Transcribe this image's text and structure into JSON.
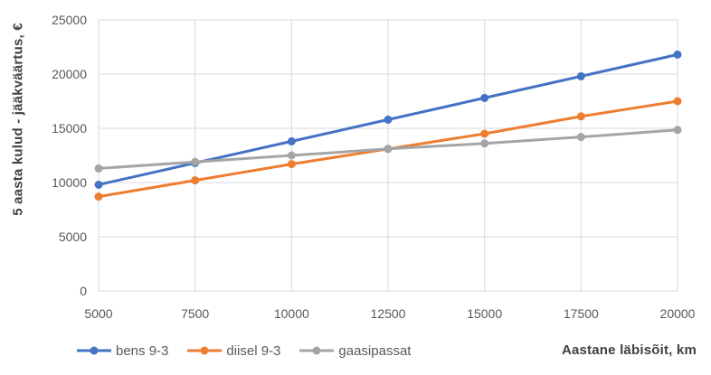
{
  "window": {
    "background": "#FFFFFF"
  },
  "chart_data": {
    "type": "line",
    "title": "",
    "xlabel": "Aastane läbisõit, km",
    "ylabel": "5 aasta kulud - jääkväärtus, €",
    "x": [
      5000,
      7500,
      10000,
      12500,
      15000,
      17500,
      20000
    ],
    "x_tick_labels": [
      "5000",
      "7500",
      "10000",
      "12500",
      "15000",
      "17500",
      "20000"
    ],
    "y_ticks": [
      0,
      5000,
      10000,
      15000,
      20000,
      25000
    ],
    "y_tick_labels": [
      "0",
      "5000",
      "10000",
      "15000",
      "20000",
      "25000"
    ],
    "xlim": [
      5000,
      20000
    ],
    "ylim": [
      0,
      25000
    ],
    "grid": true,
    "legend_position": "bottom-left",
    "series": [
      {
        "name": "bens 9-3",
        "color": "#4472C4",
        "values": [
          9800,
          11800,
          13800,
          15800,
          17800,
          19800,
          21800
        ]
      },
      {
        "name": "diisel 9-3",
        "color": "#ED7D31",
        "values": [
          8700,
          10200,
          11700,
          13100,
          14500,
          16100,
          17500
        ]
      },
      {
        "name": "gaasipassat",
        "color": "#A5A5A5",
        "values": [
          11300,
          11900,
          12500,
          13100,
          13600,
          14200,
          14850
        ]
      }
    ],
    "theme": {
      "grid_color": "#D9D9D9",
      "axis_line_color": "#D9D9D9",
      "tick_label_color": "#595959",
      "axis_title_color": "#404040",
      "background": "#FFFFFF",
      "line_width": 3,
      "marker_radius": 4.5
    }
  }
}
